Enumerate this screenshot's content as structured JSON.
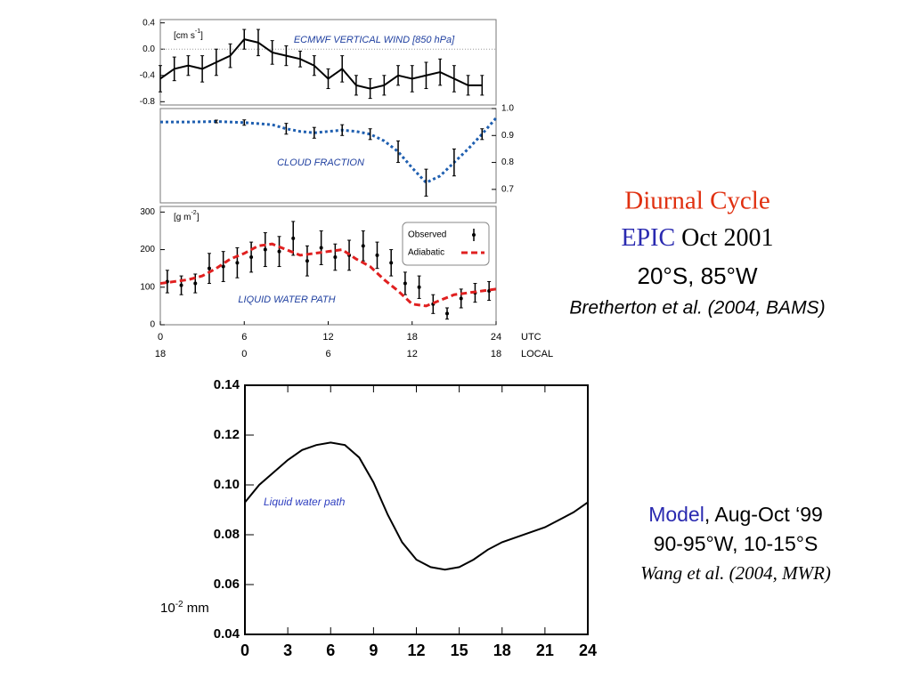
{
  "chart_data": [
    {
      "type": "line",
      "title": "ECMWF VERTICAL WIND [850 hPa]",
      "y_unit": {
        "base": "[cm s",
        "sup": "-1",
        "end": "]"
      },
      "ylim": [
        -0.85,
        0.45
      ],
      "yticks": [
        0.4,
        {
          "value": 0,
          "label": "0.0"
        },
        -0.4,
        -0.8
      ],
      "yaxis_side": "left",
      "zero_line": true,
      "series": [
        {
          "x": [
            0,
            1,
            2,
            3,
            4,
            5,
            6,
            7,
            8,
            9,
            10,
            11,
            12,
            13,
            14,
            15,
            16,
            17,
            18,
            19,
            20,
            21,
            22,
            23
          ],
          "values": [
            -0.45,
            -0.3,
            -0.25,
            -0.3,
            -0.2,
            -0.1,
            0.15,
            0.1,
            -0.05,
            -0.1,
            -0.15,
            -0.25,
            -0.45,
            -0.3,
            -0.55,
            -0.6,
            -0.55,
            -0.4,
            -0.45,
            -0.4,
            -0.35,
            -0.45,
            -0.55,
            -0.55
          ],
          "errors": [
            0.2,
            0.18,
            0.15,
            0.2,
            0.2,
            0.18,
            0.15,
            0.2,
            0.18,
            0.15,
            0.12,
            0.15,
            0.15,
            0.2,
            0.15,
            0.15,
            0.15,
            0.15,
            0.2,
            0.2,
            0.2,
            0.2,
            0.15,
            0.15
          ],
          "color": "#000000",
          "line_style": "solid",
          "marker": false
        }
      ]
    },
    {
      "type": "line",
      "title": "CLOUD FRACTION",
      "ylim": [
        0.65,
        1.0
      ],
      "yticks": [
        {
          "value": 1,
          "label": "1.0"
        },
        0.9,
        0.8,
        0.7
      ],
      "yaxis_side": "right",
      "series": [
        {
          "x": [
            0,
            2,
            4,
            6,
            8,
            9,
            10,
            11,
            12,
            13,
            14,
            15,
            16,
            17,
            18,
            19,
            20,
            21,
            22,
            23,
            24
          ],
          "values": [
            0.95,
            0.95,
            0.952,
            0.948,
            0.94,
            0.925,
            0.915,
            0.91,
            0.915,
            0.92,
            0.915,
            0.905,
            0.88,
            0.84,
            0.78,
            0.725,
            0.75,
            0.8,
            0.85,
            0.905,
            0.965
          ],
          "errors": [
            null,
            null,
            0.005,
            0.01,
            null,
            0.02,
            null,
            0.02,
            null,
            0.02,
            null,
            0.02,
            null,
            0.04,
            null,
            0.05,
            null,
            0.05,
            null,
            0.02,
            null
          ],
          "color": "#1f5fb0",
          "line_style": "dotted",
          "marker": false
        }
      ]
    },
    {
      "type": "line",
      "title": "LIQUID WATER PATH",
      "y_unit": {
        "base": "[g m",
        "sup": "-2",
        "end": "]"
      },
      "ylim": [
        0,
        315
      ],
      "yticks": [
        0,
        100,
        200,
        300
      ],
      "yaxis_side": "left",
      "xlim": [
        0,
        24
      ],
      "xticks": [
        0,
        6,
        12,
        18,
        24
      ],
      "x_label": "UTC",
      "xticks_local": [
        {
          "value": 0,
          "label": "18"
        },
        {
          "value": 6,
          "label": "0"
        },
        {
          "value": 12,
          "label": "6"
        },
        {
          "value": 18,
          "label": "12"
        },
        {
          "value": 24,
          "label": "18"
        }
      ],
      "x_label_local": "LOCAL",
      "legend": "upper right",
      "series": [
        {
          "name": "Observed",
          "x": [
            0.5,
            1.5,
            2.5,
            3.5,
            4.5,
            5.5,
            6.5,
            7.5,
            8.5,
            9.5,
            10.5,
            11.5,
            12.5,
            13.5,
            14.5,
            15.5,
            16.5,
            17.5,
            18.5,
            19.5,
            20.5,
            21.5,
            22.5,
            23.5
          ],
          "values": [
            115,
            105,
            110,
            150,
            155,
            165,
            180,
            200,
            195,
            230,
            170,
            205,
            180,
            185,
            210,
            185,
            165,
            110,
            100,
            55,
            30,
            70,
            85,
            90
          ],
          "errors": [
            30,
            25,
            25,
            40,
            40,
            40,
            40,
            45,
            40,
            45,
            40,
            45,
            35,
            40,
            40,
            35,
            35,
            30,
            30,
            25,
            15,
            25,
            25,
            25
          ],
          "color": "#000000",
          "line_style": "none",
          "marker": true
        },
        {
          "name": "Adiabatic",
          "x": [
            0,
            1,
            2,
            3,
            4,
            5,
            6,
            7,
            8,
            9,
            10,
            11,
            12,
            13,
            14,
            15,
            16,
            17,
            18,
            19,
            20,
            21,
            22,
            23,
            24
          ],
          "values": [
            110,
            115,
            120,
            130,
            150,
            175,
            190,
            210,
            215,
            200,
            185,
            190,
            195,
            200,
            175,
            155,
            120,
            90,
            55,
            50,
            65,
            80,
            85,
            90,
            95
          ],
          "color": "#e02020",
          "line_style": "dashed",
          "marker": false
        }
      ]
    },
    {
      "type": "line",
      "annotation": "Liquid water path",
      "y_unit": {
        "base": "10",
        "sup": "-2",
        "end": " mm"
      },
      "xlim": [
        0,
        24
      ],
      "xticks": [
        0,
        3,
        6,
        9,
        12,
        15,
        18,
        21,
        24
      ],
      "ylim": [
        0.04,
        0.14
      ],
      "yticks": [
        0.14,
        0.12,
        {
          "value": 0.1,
          "label": "0.10"
        },
        0.08,
        0.06,
        0.04
      ],
      "yaxis_side": "left",
      "series": [
        {
          "x": [
            0,
            1,
            2,
            3,
            4,
            5,
            6,
            7,
            8,
            9,
            10,
            11,
            12,
            13,
            14,
            15,
            16,
            17,
            18,
            19,
            20,
            21,
            22,
            23,
            24
          ],
          "values": [
            0.093,
            0.1,
            0.105,
            0.11,
            0.114,
            0.116,
            0.117,
            0.116,
            0.111,
            0.101,
            0.088,
            0.077,
            0.07,
            0.067,
            0.066,
            0.067,
            0.07,
            0.074,
            0.077,
            0.079,
            0.081,
            0.083,
            0.086,
            0.089,
            0.093
          ],
          "color": "#000000",
          "line_style": "solid",
          "marker": false
        }
      ]
    }
  ],
  "captions": {
    "epic": {
      "title": "Diurnal Cycle",
      "campaign": "EPIC",
      "period": " Oct 2001",
      "location": "20°S, 85°W",
      "reference": "Bretherton et al. (2004, BAMS)"
    },
    "model": {
      "source": "Model",
      "period": ", Aug-Oct ‘99",
      "location": "90-95°W, 10-15°S",
      "reference": "Wang et al. (2004, MWR)"
    }
  }
}
